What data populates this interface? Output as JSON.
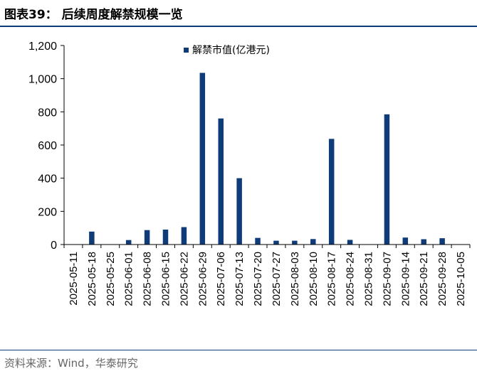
{
  "header": {
    "title": "图表39：  后续周度解禁规模一览"
  },
  "footer": {
    "source": "资料来源：Wind，华泰研究"
  },
  "chart_data": {
    "type": "bar",
    "title": "图表39：  后续周度解禁规模一览",
    "xlabel": "",
    "ylabel": "",
    "ylim": [
      0,
      1200
    ],
    "yticks": [
      0,
      200,
      400,
      600,
      800,
      1000,
      1200
    ],
    "ytick_labels": [
      "0",
      "200",
      "400",
      "600",
      "800",
      "1,000",
      "1,200"
    ],
    "grid": false,
    "legend": "top-center",
    "bar_color": "#0f3c78",
    "categories": [
      "2025-05-11",
      "2025-05-18",
      "2025-05-25",
      "2025-06-01",
      "2025-06-08",
      "2025-06-15",
      "2025-06-22",
      "2025-06-29",
      "2025-07-06",
      "2025-07-13",
      "2025-07-20",
      "2025-07-27",
      "2025-08-03",
      "2025-08-10",
      "2025-08-17",
      "2025-08-24",
      "2025-08-31",
      "2025-09-07",
      "2025-09-14",
      "2025-09-21",
      "2025-09-28",
      "2025-10-05"
    ],
    "series": [
      {
        "name": "解禁市值(亿港元)",
        "values": [
          0,
          78,
          0,
          27,
          87,
          90,
          105,
          1035,
          760,
          400,
          40,
          23,
          23,
          33,
          637,
          28,
          0,
          785,
          42,
          32,
          38,
          0
        ]
      }
    ]
  }
}
